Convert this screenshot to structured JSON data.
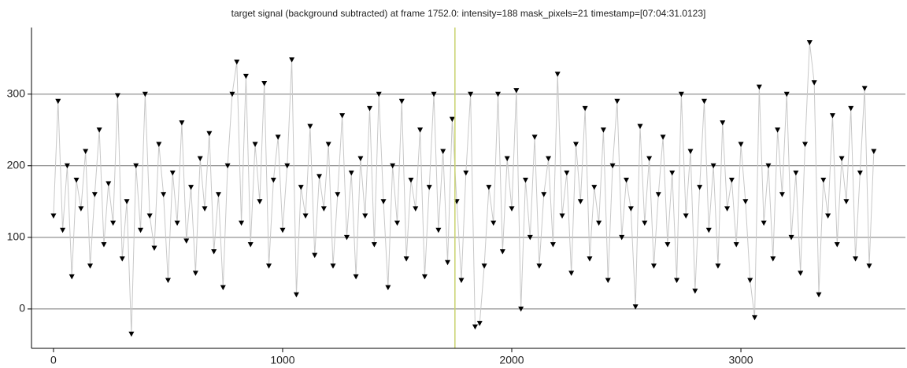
{
  "chart_data": {
    "type": "line",
    "title": "target signal (background subtracted) at frame 1752.0: intensity=188 mask_pixels=21 timestamp=[07:04:31.0123]",
    "x": [
      0,
      20,
      40,
      60,
      80,
      100,
      120,
      140,
      160,
      180,
      200,
      220,
      240,
      260,
      280,
      300,
      320,
      340,
      360,
      380,
      400,
      420,
      440,
      460,
      480,
      500,
      520,
      540,
      560,
      580,
      600,
      620,
      640,
      660,
      680,
      700,
      720,
      740,
      760,
      780,
      800,
      820,
      840,
      860,
      880,
      900,
      920,
      940,
      960,
      980,
      1000,
      1020,
      1040,
      1060,
      1080,
      1100,
      1120,
      1140,
      1160,
      1180,
      1200,
      1220,
      1240,
      1260,
      1280,
      1300,
      1320,
      1340,
      1360,
      1380,
      1400,
      1420,
      1440,
      1460,
      1480,
      1500,
      1520,
      1540,
      1560,
      1580,
      1600,
      1620,
      1640,
      1660,
      1680,
      1700,
      1720,
      1740,
      1760,
      1780,
      1800,
      1820,
      1840,
      1860,
      1880,
      1900,
      1920,
      1940,
      1960,
      1980,
      2000,
      2020,
      2040,
      2060,
      2080,
      2100,
      2120,
      2140,
      2160,
      2180,
      2200,
      2220,
      2240,
      2260,
      2280,
      2300,
      2320,
      2340,
      2360,
      2380,
      2400,
      2420,
      2440,
      2460,
      2480,
      2500,
      2520,
      2540,
      2560,
      2580,
      2600,
      2620,
      2640,
      2660,
      2680,
      2700,
      2720,
      2740,
      2760,
      2780,
      2800,
      2820,
      2840,
      2860,
      2880,
      2900,
      2920,
      2940,
      2960,
      2980,
      3000,
      3020,
      3040,
      3060,
      3080,
      3100,
      3120,
      3140,
      3160,
      3180,
      3200,
      3220,
      3240,
      3260,
      3280,
      3300,
      3320,
      3340,
      3360,
      3380,
      3400,
      3420,
      3440,
      3460,
      3480,
      3500,
      3520,
      3540,
      3560,
      3580
    ],
    "series": [
      {
        "color": "#000000",
        "line_color": "#c8c8c8",
        "values": [
          130,
          290,
          110,
          200,
          45,
          180,
          140,
          220,
          60,
          160,
          250,
          90,
          175,
          120,
          298,
          70,
          150,
          -35,
          200,
          110,
          300,
          130,
          85,
          230,
          160,
          40,
          190,
          120,
          260,
          95,
          170,
          50,
          210,
          140,
          245,
          80,
          160,
          30,
          200,
          300,
          345,
          120,
          325,
          90,
          230,
          150,
          315,
          60,
          180,
          240,
          110,
          200,
          348,
          20,
          170,
          130,
          255,
          75,
          185,
          140,
          230,
          60,
          160,
          270,
          100,
          190,
          45,
          210,
          130,
          280,
          90,
          300,
          150,
          30,
          200,
          120,
          290,
          70,
          180,
          140,
          250,
          45,
          170,
          300,
          110,
          220,
          65,
          265,
          150,
          40,
          190,
          300,
          -25,
          -20,
          60,
          170,
          120,
          300,
          80,
          210,
          140,
          305,
          0,
          180,
          100,
          240,
          60,
          160,
          210,
          90,
          328,
          130,
          190,
          50,
          230,
          150,
          280,
          70,
          170,
          120,
          250,
          40,
          200,
          290,
          100,
          180,
          140,
          3,
          255,
          120,
          210,
          60,
          160,
          240,
          90,
          190,
          40,
          300,
          130,
          220,
          25,
          170,
          290,
          110,
          200,
          60,
          260,
          140,
          180,
          90,
          230,
          150,
          40,
          -12,
          310,
          120,
          200,
          70,
          250,
          160,
          300,
          100,
          190,
          50,
          230,
          372,
          316,
          20,
          180,
          130,
          270,
          90,
          210,
          150,
          280,
          70,
          190,
          308,
          60,
          220
        ]
      }
    ],
    "vline": 1752,
    "vline_color": "#c8d26e",
    "xlim": [
      -96,
      3718
    ],
    "ylim": [
      -55,
      393
    ],
    "xticks": [
      0,
      1000,
      2000,
      3000
    ],
    "yticks": [
      0,
      100,
      200,
      300
    ],
    "grid": true
  }
}
